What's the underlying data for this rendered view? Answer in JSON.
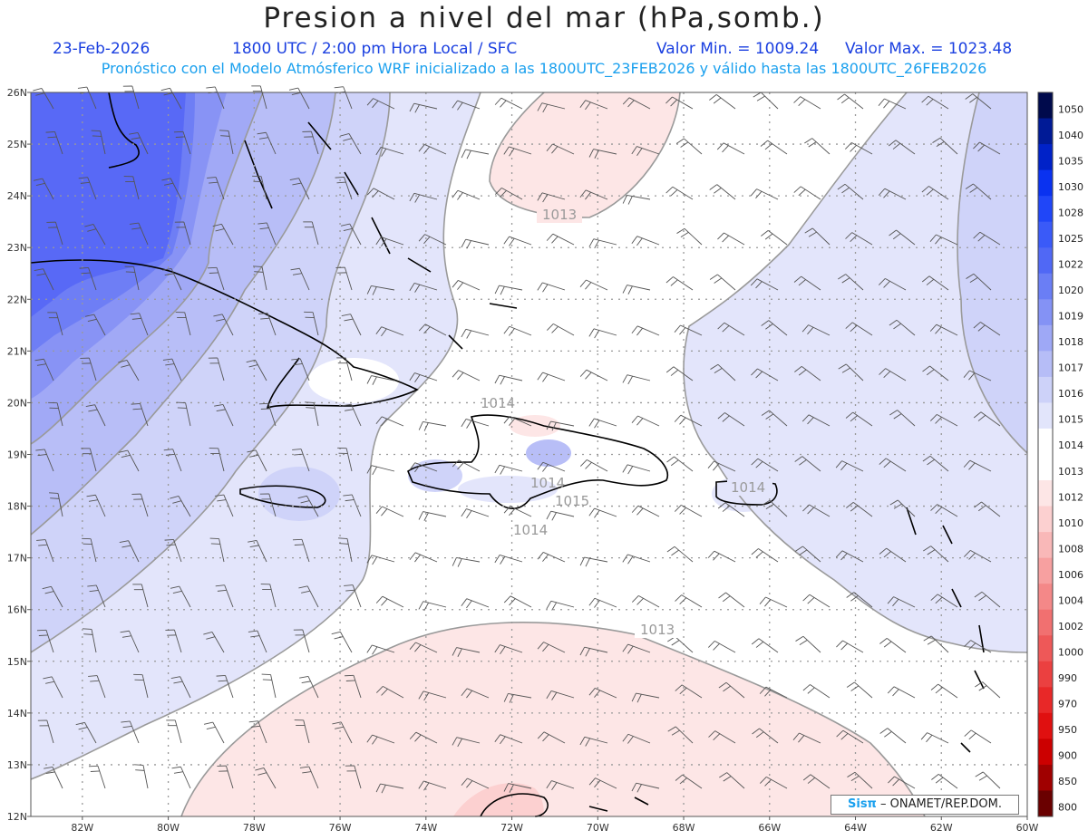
{
  "header": {
    "title": "Presion a nivel del mar (hPa,somb.)",
    "date": "23-Feb-2026",
    "time": "1800 UTC / 2:00 pm Hora Local / SFC",
    "min_value": "Valor Min. = 1009.24",
    "max_value": "Valor Max. = 1023.48",
    "model_info": "Pronóstico con el Modelo Atmósferico WRF inicializado a las 1800UTC_23FEB2026 y válido hasta las  1800UTC_26FEB2026"
  },
  "map": {
    "lat_labels": [
      "26N",
      "25N",
      "24N",
      "23N",
      "22N",
      "21N",
      "20N",
      "19N",
      "18N",
      "17N",
      "16N",
      "15N",
      "14N",
      "13N",
      "12N"
    ],
    "lon_labels": [
      "82W",
      "80W",
      "78W",
      "76W",
      "74W",
      "72W",
      "70W",
      "68W",
      "66W",
      "64W",
      "62W",
      "60W"
    ],
    "lat_range": [
      12,
      26
    ],
    "lon_range": [
      -83.2,
      -60
    ],
    "contour_labels": [
      "1013",
      "1014",
      "1014",
      "1015",
      "1014",
      "1014",
      "1013"
    ],
    "grid": "dotted"
  },
  "colorbar": {
    "levels": [
      "1050",
      "1040",
      "1035",
      "1030",
      "1028",
      "1025",
      "1022",
      "1020",
      "1019",
      "1018",
      "1017",
      "1016",
      "1015",
      "1014",
      "1013",
      "1012",
      "1010",
      "1008",
      "1006",
      "1004",
      "1002",
      "1000",
      "990",
      "970",
      "950",
      "900",
      "850",
      "800"
    ],
    "colors": [
      "#000a4c",
      "#001a96",
      "#0022c8",
      "#0a32f0",
      "#2046f8",
      "#3a5af8",
      "#5068f5",
      "#6a7ef5",
      "#8492f5",
      "#9ea8f6",
      "#b6bdf7",
      "#cdd2f9",
      "#e2e5fb",
      "#ffffff",
      "#ffffff",
      "#fde6e6",
      "#fcd0d0",
      "#f9b8b8",
      "#f7a0a0",
      "#f48888",
      "#f17070",
      "#ee5858",
      "#eb4040",
      "#e82828",
      "#e01010",
      "#cc0000",
      "#a00000",
      "#6a0000"
    ]
  },
  "credit": {
    "brand": "Sisπ",
    "text": " – ONAMET/REP.DOM."
  }
}
